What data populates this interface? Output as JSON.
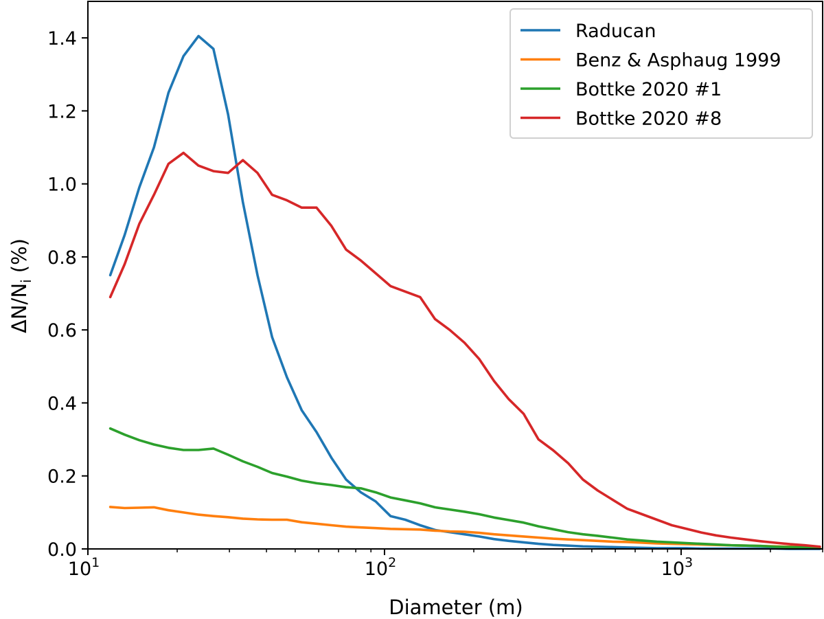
{
  "chart_data": {
    "type": "line",
    "xscale": "log",
    "xlabel": "Diameter (m)",
    "ylabel_parts": [
      "ΔN/N",
      "i",
      " (%)"
    ],
    "xlim": [
      10,
      3000
    ],
    "ylim": [
      0,
      1.5
    ],
    "xticks": [
      {
        "value": 10,
        "base": "10",
        "exp": "1"
      },
      {
        "value": 100,
        "base": "10",
        "exp": "2"
      },
      {
        "value": 1000,
        "base": "10",
        "exp": "3"
      }
    ],
    "yticks": [
      "0.0",
      "0.2",
      "0.4",
      "0.6",
      "0.8",
      "1.0",
      "1.2",
      "1.4"
    ],
    "grid": false,
    "legend_position": "top-right",
    "series": [
      {
        "name": "Raducan",
        "color": "#1f77b4",
        "points": [
          [
            11.9,
            0.75
          ],
          [
            13.3,
            0.86
          ],
          [
            14.9,
            0.99
          ],
          [
            16.7,
            1.1
          ],
          [
            18.7,
            1.25
          ],
          [
            21.0,
            1.35
          ],
          [
            23.6,
            1.405
          ],
          [
            26.5,
            1.37
          ],
          [
            29.7,
            1.19
          ],
          [
            33.3,
            0.95
          ],
          [
            37.3,
            0.75
          ],
          [
            41.8,
            0.58
          ],
          [
            46.9,
            0.47
          ],
          [
            52.6,
            0.38
          ],
          [
            59.0,
            0.32
          ],
          [
            66.2,
            0.25
          ],
          [
            74.2,
            0.19
          ],
          [
            83.2,
            0.155
          ],
          [
            93.4,
            0.13
          ],
          [
            104.8,
            0.09
          ],
          [
            117.5,
            0.08
          ],
          [
            131.8,
            0.065
          ],
          [
            147.9,
            0.052
          ],
          [
            165.9,
            0.046
          ],
          [
            186.0,
            0.04
          ],
          [
            208.7,
            0.034
          ],
          [
            234.1,
            0.027
          ],
          [
            262.6,
            0.022
          ],
          [
            294.6,
            0.018
          ],
          [
            330.5,
            0.014
          ],
          [
            370.7,
            0.011
          ],
          [
            415.9,
            0.009
          ],
          [
            466.5,
            0.007
          ],
          [
            523.4,
            0.006
          ],
          [
            587.1,
            0.005
          ],
          [
            658.6,
            0.004
          ],
          [
            738.8,
            0.003
          ],
          [
            828.8,
            0.002
          ],
          [
            929.8,
            0.002
          ],
          [
            1043,
            0.002
          ],
          [
            1170,
            0.001
          ],
          [
            1312,
            0.001
          ],
          [
            1472,
            0.001
          ],
          [
            1652,
            0.001
          ],
          [
            1853,
            0.001
          ],
          [
            2078,
            0.001
          ],
          [
            2332,
            0.0
          ],
          [
            2616,
            0.0
          ],
          [
            2935,
            0.0
          ]
        ]
      },
      {
        "name": "Benz & Asphaug 1999",
        "color": "#ff7f0e",
        "points": [
          [
            11.9,
            0.115
          ],
          [
            13.3,
            0.112
          ],
          [
            14.9,
            0.113
          ],
          [
            16.7,
            0.114
          ],
          [
            18.7,
            0.106
          ],
          [
            21.0,
            0.1
          ],
          [
            23.6,
            0.094
          ],
          [
            26.5,
            0.09
          ],
          [
            29.7,
            0.087
          ],
          [
            33.3,
            0.083
          ],
          [
            37.3,
            0.081
          ],
          [
            41.8,
            0.08
          ],
          [
            46.9,
            0.08
          ],
          [
            52.6,
            0.073
          ],
          [
            59.0,
            0.069
          ],
          [
            66.2,
            0.065
          ],
          [
            74.2,
            0.061
          ],
          [
            83.2,
            0.059
          ],
          [
            93.4,
            0.057
          ],
          [
            104.8,
            0.055
          ],
          [
            117.5,
            0.054
          ],
          [
            131.8,
            0.053
          ],
          [
            147.9,
            0.05
          ],
          [
            165.9,
            0.048
          ],
          [
            186.0,
            0.047
          ],
          [
            208.7,
            0.044
          ],
          [
            234.1,
            0.04
          ],
          [
            262.6,
            0.037
          ],
          [
            294.6,
            0.034
          ],
          [
            330.5,
            0.031
          ],
          [
            370.7,
            0.028
          ],
          [
            415.9,
            0.026
          ],
          [
            466.5,
            0.024
          ],
          [
            523.4,
            0.022
          ],
          [
            587.1,
            0.02
          ],
          [
            658.6,
            0.019
          ],
          [
            738.8,
            0.017
          ],
          [
            828.8,
            0.015
          ],
          [
            929.8,
            0.014
          ],
          [
            1043,
            0.013
          ],
          [
            1170,
            0.012
          ],
          [
            1312,
            0.011
          ],
          [
            1472,
            0.01
          ],
          [
            1652,
            0.009
          ],
          [
            1853,
            0.008
          ],
          [
            2078,
            0.007
          ],
          [
            2332,
            0.006
          ],
          [
            2616,
            0.005
          ],
          [
            2935,
            0.004
          ]
        ]
      },
      {
        "name": "Bottke 2020 #1",
        "color": "#2ca02c",
        "points": [
          [
            11.9,
            0.33
          ],
          [
            13.3,
            0.313
          ],
          [
            14.9,
            0.298
          ],
          [
            16.7,
            0.286
          ],
          [
            18.7,
            0.277
          ],
          [
            21.0,
            0.271
          ],
          [
            23.6,
            0.271
          ],
          [
            26.5,
            0.275
          ],
          [
            29.7,
            0.258
          ],
          [
            33.3,
            0.24
          ],
          [
            37.3,
            0.225
          ],
          [
            41.8,
            0.208
          ],
          [
            46.9,
            0.198
          ],
          [
            52.6,
            0.187
          ],
          [
            59.0,
            0.18
          ],
          [
            66.2,
            0.175
          ],
          [
            74.2,
            0.169
          ],
          [
            83.2,
            0.166
          ],
          [
            93.4,
            0.155
          ],
          [
            104.8,
            0.141
          ],
          [
            117.5,
            0.133
          ],
          [
            131.8,
            0.125
          ],
          [
            147.9,
            0.114
          ],
          [
            165.9,
            0.108
          ],
          [
            186.0,
            0.102
          ],
          [
            208.7,
            0.095
          ],
          [
            234.1,
            0.086
          ],
          [
            262.6,
            0.079
          ],
          [
            294.6,
            0.072
          ],
          [
            330.5,
            0.062
          ],
          [
            370.7,
            0.054
          ],
          [
            415.9,
            0.046
          ],
          [
            466.5,
            0.04
          ],
          [
            523.4,
            0.036
          ],
          [
            587.1,
            0.031
          ],
          [
            658.6,
            0.026
          ],
          [
            738.8,
            0.023
          ],
          [
            828.8,
            0.02
          ],
          [
            929.8,
            0.018
          ],
          [
            1043,
            0.016
          ],
          [
            1170,
            0.014
          ],
          [
            1312,
            0.012
          ],
          [
            1472,
            0.01
          ],
          [
            1652,
            0.009
          ],
          [
            1853,
            0.008
          ],
          [
            2078,
            0.006
          ],
          [
            2332,
            0.005
          ],
          [
            2616,
            0.004
          ],
          [
            2935,
            0.003
          ]
        ]
      },
      {
        "name": "Bottke 2020 #8",
        "color": "#d62728",
        "points": [
          [
            11.9,
            0.69
          ],
          [
            13.3,
            0.78
          ],
          [
            14.9,
            0.89
          ],
          [
            16.7,
            0.97
          ],
          [
            18.7,
            1.055
          ],
          [
            21.0,
            1.085
          ],
          [
            23.6,
            1.05
          ],
          [
            26.5,
            1.035
          ],
          [
            29.7,
            1.03
          ],
          [
            33.3,
            1.065
          ],
          [
            37.3,
            1.03
          ],
          [
            41.8,
            0.97
          ],
          [
            46.9,
            0.955
          ],
          [
            52.6,
            0.935
          ],
          [
            59.0,
            0.935
          ],
          [
            66.2,
            0.885
          ],
          [
            74.2,
            0.82
          ],
          [
            83.2,
            0.79
          ],
          [
            93.4,
            0.755
          ],
          [
            104.8,
            0.72
          ],
          [
            117.5,
            0.705
          ],
          [
            131.8,
            0.69
          ],
          [
            147.9,
            0.63
          ],
          [
            165.9,
            0.6
          ],
          [
            186.0,
            0.565
          ],
          [
            208.7,
            0.52
          ],
          [
            234.1,
            0.46
          ],
          [
            262.6,
            0.41
          ],
          [
            294.6,
            0.37
          ],
          [
            330.5,
            0.3
          ],
          [
            370.7,
            0.27
          ],
          [
            415.9,
            0.235
          ],
          [
            466.5,
            0.19
          ],
          [
            523.4,
            0.16
          ],
          [
            587.1,
            0.135
          ],
          [
            658.6,
            0.11
          ],
          [
            738.8,
            0.095
          ],
          [
            828.8,
            0.08
          ],
          [
            929.8,
            0.065
          ],
          [
            1043,
            0.055
          ],
          [
            1170,
            0.045
          ],
          [
            1312,
            0.037
          ],
          [
            1472,
            0.031
          ],
          [
            1652,
            0.026
          ],
          [
            1853,
            0.021
          ],
          [
            2078,
            0.017
          ],
          [
            2332,
            0.013
          ],
          [
            2616,
            0.01
          ],
          [
            2935,
            0.006
          ]
        ]
      }
    ]
  }
}
